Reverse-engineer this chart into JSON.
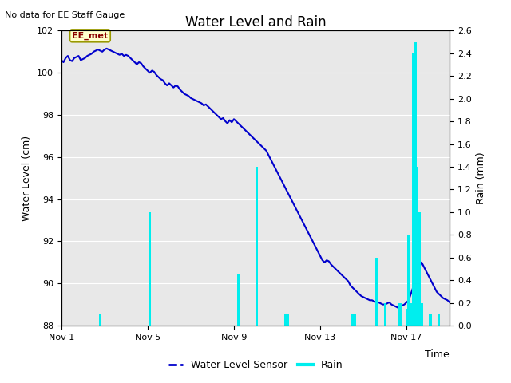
{
  "title": "Water Level and Rain",
  "subtitle": "No data for EE Staff Gauge",
  "xlabel": "Time",
  "ylabel_left": "Water Level (cm)",
  "ylabel_right": "Rain (mm)",
  "ylim_left": [
    88,
    102
  ],
  "ylim_right": [
    0.0,
    2.6
  ],
  "yticks_left": [
    88,
    90,
    92,
    94,
    96,
    98,
    100,
    102
  ],
  "yticks_right": [
    0.0,
    0.2,
    0.4,
    0.6,
    0.8,
    1.0,
    1.2,
    1.4,
    1.6,
    1.8,
    2.0,
    2.2,
    2.4,
    2.6
  ],
  "xtick_labels": [
    "Nov 1",
    "Nov 5",
    "Nov 9",
    "Nov 13",
    "Nov 17"
  ],
  "xtick_positions": [
    0,
    4,
    8,
    12,
    16
  ],
  "xlim": [
    0,
    18
  ],
  "water_level_color": "#0000cc",
  "rain_color": "#00eeee",
  "background_color": "#e8e8e8",
  "plot_bg_color": "#f0f0f0",
  "annotation_label": "EE_met",
  "legend_entries": [
    "Water Level Sensor",
    "Rain"
  ],
  "water_level_data": [
    [
      0,
      100.6
    ],
    [
      0.1,
      100.5
    ],
    [
      0.2,
      100.7
    ],
    [
      0.3,
      100.8
    ],
    [
      0.4,
      100.6
    ],
    [
      0.5,
      100.55
    ],
    [
      0.6,
      100.7
    ],
    [
      0.7,
      100.75
    ],
    [
      0.8,
      100.8
    ],
    [
      0.9,
      100.6
    ],
    [
      1.0,
      100.65
    ],
    [
      1.1,
      100.7
    ],
    [
      1.2,
      100.8
    ],
    [
      1.3,
      100.85
    ],
    [
      1.4,
      100.9
    ],
    [
      1.5,
      101.0
    ],
    [
      1.6,
      101.05
    ],
    [
      1.7,
      101.1
    ],
    [
      1.8,
      101.05
    ],
    [
      1.9,
      101.0
    ],
    [
      2.0,
      101.1
    ],
    [
      2.1,
      101.15
    ],
    [
      2.2,
      101.1
    ],
    [
      2.3,
      101.05
    ],
    [
      2.4,
      101.0
    ],
    [
      2.5,
      100.95
    ],
    [
      2.6,
      100.9
    ],
    [
      2.7,
      100.85
    ],
    [
      2.8,
      100.9
    ],
    [
      2.9,
      100.8
    ],
    [
      3.0,
      100.85
    ],
    [
      3.1,
      100.8
    ],
    [
      3.2,
      100.7
    ],
    [
      3.3,
      100.6
    ],
    [
      3.4,
      100.5
    ],
    [
      3.5,
      100.4
    ],
    [
      3.6,
      100.5
    ],
    [
      3.7,
      100.45
    ],
    [
      3.8,
      100.3
    ],
    [
      3.9,
      100.2
    ],
    [
      4.0,
      100.1
    ],
    [
      4.1,
      100.0
    ],
    [
      4.2,
      100.1
    ],
    [
      4.3,
      100.05
    ],
    [
      4.4,
      99.9
    ],
    [
      4.5,
      99.8
    ],
    [
      4.6,
      99.7
    ],
    [
      4.7,
      99.65
    ],
    [
      4.8,
      99.5
    ],
    [
      4.9,
      99.4
    ],
    [
      5.0,
      99.5
    ],
    [
      5.1,
      99.4
    ],
    [
      5.2,
      99.3
    ],
    [
      5.3,
      99.4
    ],
    [
      5.4,
      99.35
    ],
    [
      5.5,
      99.2
    ],
    [
      5.6,
      99.1
    ],
    [
      5.7,
      99.0
    ],
    [
      5.8,
      98.95
    ],
    [
      5.9,
      98.9
    ],
    [
      6.0,
      98.8
    ],
    [
      6.1,
      98.75
    ],
    [
      6.2,
      98.7
    ],
    [
      6.3,
      98.65
    ],
    [
      6.4,
      98.6
    ],
    [
      6.5,
      98.55
    ],
    [
      6.6,
      98.45
    ],
    [
      6.7,
      98.5
    ],
    [
      6.8,
      98.4
    ],
    [
      6.9,
      98.3
    ],
    [
      7.0,
      98.2
    ],
    [
      7.1,
      98.1
    ],
    [
      7.2,
      98.0
    ],
    [
      7.3,
      97.9
    ],
    [
      7.4,
      97.8
    ],
    [
      7.5,
      97.85
    ],
    [
      7.6,
      97.7
    ],
    [
      7.7,
      97.6
    ],
    [
      7.8,
      97.75
    ],
    [
      7.9,
      97.65
    ],
    [
      8.0,
      97.8
    ],
    [
      8.1,
      97.7
    ],
    [
      8.2,
      97.6
    ],
    [
      8.3,
      97.5
    ],
    [
      8.4,
      97.4
    ],
    [
      8.5,
      97.3
    ],
    [
      8.6,
      97.2
    ],
    [
      8.7,
      97.1
    ],
    [
      8.8,
      97.0
    ],
    [
      8.9,
      96.9
    ],
    [
      9.0,
      96.8
    ],
    [
      9.1,
      96.7
    ],
    [
      9.2,
      96.6
    ],
    [
      9.3,
      96.5
    ],
    [
      9.4,
      96.4
    ],
    [
      9.5,
      96.3
    ],
    [
      9.6,
      96.1
    ],
    [
      9.7,
      95.9
    ],
    [
      9.8,
      95.7
    ],
    [
      9.9,
      95.5
    ],
    [
      10.0,
      95.3
    ],
    [
      10.1,
      95.1
    ],
    [
      10.2,
      94.9
    ],
    [
      10.3,
      94.7
    ],
    [
      10.4,
      94.5
    ],
    [
      10.5,
      94.3
    ],
    [
      10.6,
      94.1
    ],
    [
      10.7,
      93.9
    ],
    [
      10.8,
      93.7
    ],
    [
      10.9,
      93.5
    ],
    [
      11.0,
      93.3
    ],
    [
      11.1,
      93.1
    ],
    [
      11.2,
      92.9
    ],
    [
      11.3,
      92.7
    ],
    [
      11.4,
      92.5
    ],
    [
      11.5,
      92.3
    ],
    [
      11.6,
      92.1
    ],
    [
      11.7,
      91.9
    ],
    [
      11.8,
      91.7
    ],
    [
      11.9,
      91.5
    ],
    [
      12.0,
      91.3
    ],
    [
      12.1,
      91.1
    ],
    [
      12.2,
      91.0
    ],
    [
      12.3,
      91.1
    ],
    [
      12.4,
      91.05
    ],
    [
      12.5,
      90.9
    ],
    [
      12.6,
      90.8
    ],
    [
      12.7,
      90.7
    ],
    [
      12.8,
      90.6
    ],
    [
      12.9,
      90.5
    ],
    [
      13.0,
      90.4
    ],
    [
      13.1,
      90.3
    ],
    [
      13.2,
      90.2
    ],
    [
      13.3,
      90.1
    ],
    [
      13.4,
      89.9
    ],
    [
      13.5,
      89.8
    ],
    [
      13.6,
      89.7
    ],
    [
      13.7,
      89.6
    ],
    [
      13.8,
      89.5
    ],
    [
      13.9,
      89.4
    ],
    [
      14.0,
      89.35
    ],
    [
      14.1,
      89.3
    ],
    [
      14.2,
      89.25
    ],
    [
      14.3,
      89.2
    ],
    [
      14.4,
      89.2
    ],
    [
      14.5,
      89.15
    ],
    [
      14.6,
      89.1
    ],
    [
      14.7,
      89.1
    ],
    [
      14.8,
      89.05
    ],
    [
      14.9,
      89.0
    ],
    [
      15.0,
      89.0
    ],
    [
      15.1,
      89.05
    ],
    [
      15.2,
      89.1
    ],
    [
      15.3,
      89.0
    ],
    [
      15.4,
      88.95
    ],
    [
      15.5,
      88.9
    ],
    [
      15.6,
      88.85
    ],
    [
      15.7,
      88.9
    ],
    [
      15.8,
      88.95
    ],
    [
      15.9,
      89.0
    ],
    [
      16.0,
      89.1
    ],
    [
      16.1,
      89.2
    ],
    [
      16.2,
      89.5
    ],
    [
      16.3,
      89.8
    ],
    [
      16.4,
      90.1
    ],
    [
      16.5,
      90.5
    ],
    [
      16.6,
      90.8
    ],
    [
      16.7,
      91.0
    ],
    [
      16.8,
      90.8
    ],
    [
      16.9,
      90.6
    ],
    [
      17.0,
      90.4
    ],
    [
      17.1,
      90.2
    ],
    [
      17.2,
      90.0
    ],
    [
      17.3,
      89.8
    ],
    [
      17.4,
      89.6
    ],
    [
      17.5,
      89.5
    ],
    [
      17.6,
      89.4
    ],
    [
      17.7,
      89.3
    ],
    [
      17.8,
      89.25
    ],
    [
      17.9,
      89.2
    ],
    [
      18.0,
      89.1
    ]
  ],
  "rain_bars": [
    [
      1.8,
      0.1
    ],
    [
      4.1,
      1.0
    ],
    [
      8.2,
      0.45
    ],
    [
      9.05,
      1.4
    ],
    [
      10.4,
      0.1
    ],
    [
      10.5,
      0.1
    ],
    [
      13.5,
      0.1
    ],
    [
      13.6,
      0.1
    ],
    [
      14.6,
      0.6
    ],
    [
      15.0,
      0.2
    ],
    [
      15.7,
      0.2
    ],
    [
      16.0,
      0.15
    ],
    [
      16.1,
      0.8
    ],
    [
      16.2,
      0.2
    ],
    [
      16.3,
      2.4
    ],
    [
      16.4,
      2.5
    ],
    [
      16.5,
      1.4
    ],
    [
      16.6,
      1.0
    ],
    [
      16.7,
      0.2
    ],
    [
      17.1,
      0.1
    ],
    [
      17.5,
      0.1
    ]
  ]
}
